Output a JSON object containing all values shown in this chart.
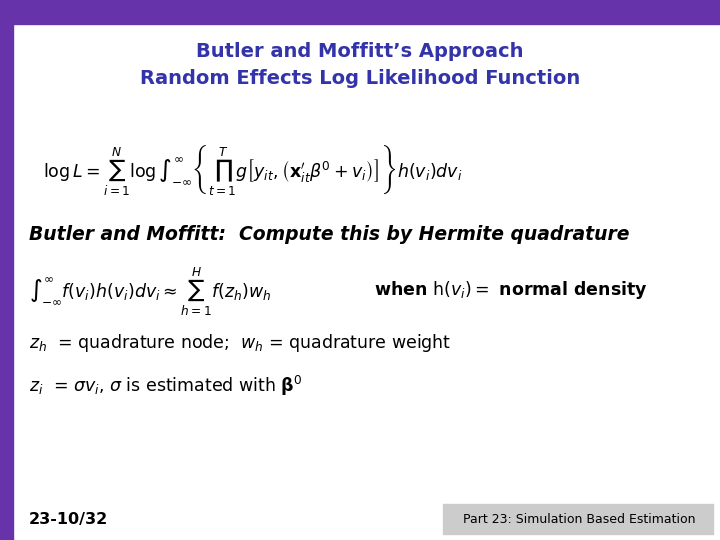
{
  "title_line1": "Butler and Moffitt’s Approach",
  "title_line2": "Random Effects Log Likelihood Function",
  "title_color": "#3333AA",
  "title_fontsize": 15,
  "bg_color": "#FFFFFF",
  "top_bar_color": "#6633AA",
  "left_bar_color": "#6633AA",
  "bottom_left_text": "23-10/32",
  "bottom_right_text": "Part 23: Simulation Based Estimation",
  "bottom_right_bg": "#CCCCCC"
}
